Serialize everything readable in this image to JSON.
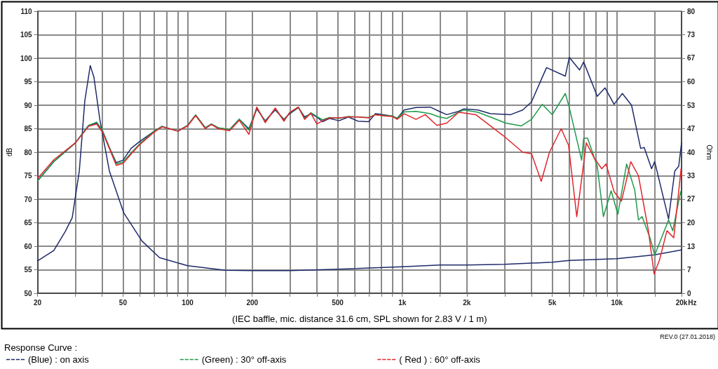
{
  "chart_data": {
    "type": "line",
    "xlabel": "(IEC baffle, mic. distance 31.6 cm, SPL shown for 2.83 V / 1 m)",
    "ylabel": "dB",
    "y2label": "Ohm",
    "legend_title": "Response Curve :",
    "annotations": [
      "REV.0 (27.01.2018)",
      "Hz"
    ],
    "log": "x",
    "grid": true,
    "legend": "bottom left",
    "marker": "none",
    "line_style": "solid",
    "xlim": [
      20,
      20000
    ],
    "ylim": [
      50,
      110
    ],
    "y2lim": [
      0,
      80
    ],
    "xticks": [
      20,
      {
        "value": 30,
        "label": null
      },
      {
        "value": 40,
        "label": null
      },
      50,
      {
        "value": 60,
        "label": null
      },
      {
        "value": 70,
        "label": null
      },
      {
        "value": 80,
        "label": null
      },
      {
        "value": 90,
        "label": null
      },
      100,
      {
        "value": 150,
        "label": null
      },
      200,
      {
        "value": 300,
        "label": null
      },
      {
        "value": 400,
        "label": null
      },
      500,
      {
        "value": 600,
        "label": null
      },
      {
        "value": 700,
        "label": null
      },
      {
        "value": 800,
        "label": null
      },
      {
        "value": 900,
        "label": null
      },
      {
        "value": 1000,
        "label": "1k"
      },
      {
        "value": 1500,
        "label": null
      },
      {
        "value": 2000,
        "label": "2k"
      },
      {
        "value": 3000,
        "label": null
      },
      {
        "value": 4000,
        "label": null
      },
      {
        "value": 5000,
        "label": "5k"
      },
      {
        "value": 6000,
        "label": null
      },
      {
        "value": 7000,
        "label": null
      },
      {
        "value": 8000,
        "label": null
      },
      {
        "value": 9000,
        "label": null
      },
      {
        "value": 10000,
        "label": "10k"
      },
      {
        "value": 15000,
        "label": null
      },
      {
        "value": 20000,
        "label": "20k"
      }
    ],
    "yticks": [
      50,
      55,
      60,
      65,
      70,
      75,
      80,
      85,
      90,
      95,
      100,
      105,
      110
    ],
    "y2ticks": [
      0,
      {
        "value": 6.667,
        "label": "7"
      },
      {
        "value": 13.333,
        "label": "13"
      },
      20,
      {
        "value": 26.667,
        "label": "27"
      },
      {
        "value": 33.333,
        "label": "33"
      },
      40,
      {
        "value": 46.667,
        "label": "47"
      },
      {
        "value": 53.333,
        "label": "53"
      },
      60,
      {
        "value": 66.667,
        "label": "67"
      },
      {
        "value": 73.333,
        "label": "73"
      },
      80
    ],
    "series": [
      {
        "name": "(Blue) : on axis",
        "color": "#1f2a6b",
        "x": [
          20,
          23.8,
          30,
          34.6,
          37.7,
          40.1,
          43.2,
          46.5,
          50,
          54.5,
          59.8,
          70,
          76,
          90,
          100,
          109,
          121,
          129,
          139,
          157,
          174,
          193,
          210,
          230,
          256,
          281,
          299,
          328,
          351,
          375,
          400,
          425,
          458,
          507,
          561,
          622,
          697,
          750,
          836,
          900,
          946,
          1021,
          1159,
          1350,
          1488,
          1611,
          1831,
          1929,
          2250,
          2570,
          3200,
          3640,
          4000,
          4700,
          5750,
          6000,
          6700,
          7000,
          8100,
          8800,
          9700,
          10600,
          11700,
          12900,
          13400,
          14500,
          15000,
          17400,
          18600,
          19400,
          20000
        ],
        "values": [
          73.9,
          78.0,
          82.0,
          85.7,
          86.2,
          84.5,
          81.0,
          77.8,
          78.3,
          80.8,
          82.3,
          84.5,
          85.5,
          84.5,
          85.7,
          87.9,
          85.2,
          86.0,
          85.2,
          84.8,
          87.0,
          85.0,
          89.2,
          86.7,
          89.0,
          87.0,
          88.2,
          89.5,
          87.5,
          88.2,
          87.5,
          86.5,
          87.2,
          86.7,
          87.5,
          86.6,
          86.5,
          88.2,
          87.9,
          87.7,
          87.2,
          89.0,
          89.5,
          89.6,
          88.7,
          88.0,
          88.7,
          89.2,
          89.0,
          88.2,
          88.0,
          89.0,
          90.7,
          98.0,
          96.2,
          100.2,
          97.5,
          99.2,
          91.9,
          93.7,
          90.2,
          92.5,
          90.0,
          80.8,
          81.0,
          76.5,
          78.0,
          65.8,
          76.0,
          77.0,
          82.0
        ]
      },
      {
        "name": "(Green) : 30° off-axis",
        "color": "#1e9a4a",
        "x": [
          20,
          23.8,
          30,
          34.6,
          37.7,
          40.1,
          43.2,
          46.5,
          50,
          54.5,
          59.8,
          70,
          76,
          90,
          100,
          109,
          121,
          129,
          139,
          157,
          174,
          193,
          210,
          230,
          256,
          281,
          299,
          328,
          351,
          375,
          400,
          425,
          458,
          507,
          561,
          622,
          697,
          750,
          836,
          900,
          946,
          1021,
          1159,
          1350,
          1488,
          1611,
          1831,
          1929,
          2250,
          2570,
          3040,
          3590,
          4000,
          4490,
          5000,
          5750,
          6000,
          6850,
          7000,
          7300,
          8100,
          8650,
          9400,
          10100,
          11100,
          12100,
          12600,
          13100,
          14300,
          15000,
          17400,
          18200,
          19800,
          20000
        ],
        "values": [
          73.9,
          78.0,
          82.0,
          85.7,
          86.4,
          84.7,
          81.0,
          77.5,
          77.9,
          79.8,
          81.8,
          84.5,
          85.5,
          84.5,
          85.7,
          87.9,
          85.2,
          86.0,
          85.2,
          84.8,
          87.0,
          84.7,
          89.5,
          86.5,
          89.3,
          86.8,
          88.4,
          89.6,
          87.2,
          88.4,
          87.6,
          86.9,
          87.4,
          87.2,
          87.6,
          87.5,
          87.4,
          88.0,
          87.8,
          87.7,
          87.2,
          88.6,
          88.7,
          88.2,
          87.5,
          87.2,
          88.5,
          89.0,
          88.5,
          87.5,
          86.2,
          85.6,
          87.0,
          90.2,
          88.0,
          92.5,
          89.5,
          78.3,
          83.0,
          83.0,
          77.0,
          66.3,
          71.8,
          66.8,
          77.5,
          72.0,
          65.6,
          66.3,
          61.6,
          58.1,
          65.6,
          63.3,
          71.6,
          70.6
        ]
      },
      {
        "name": "( Red ) : 60° off-axis",
        "color": "#e0262b",
        "x": [
          20,
          23.8,
          30,
          34.6,
          37.7,
          40.1,
          43.2,
          46.5,
          50,
          54.5,
          59.8,
          70,
          76,
          90,
          100,
          109,
          121,
          129,
          139,
          157,
          174,
          193,
          210,
          230,
          256,
          281,
          299,
          328,
          351,
          375,
          400,
          425,
          458,
          507,
          561,
          622,
          697,
          750,
          836,
          900,
          946,
          1021,
          1159,
          1280,
          1450,
          1611,
          1831,
          2200,
          2960,
          3640,
          4000,
          4440,
          4850,
          5500,
          5950,
          6500,
          7200,
          7900,
          8500,
          8900,
          9700,
          10500,
          11600,
          12600,
          14000,
          14900,
          15800,
          17100,
          18400,
          19900,
          20000
        ],
        "values": [
          74.4,
          78.4,
          82.0,
          85.5,
          86.0,
          84.3,
          80.8,
          77.2,
          77.6,
          79.6,
          81.6,
          84.3,
          85.4,
          84.5,
          85.6,
          87.8,
          85.0,
          85.9,
          85.0,
          84.6,
          86.8,
          83.8,
          89.6,
          86.3,
          89.4,
          86.6,
          88.5,
          89.6,
          87.0,
          88.3,
          86.0,
          86.7,
          87.3,
          87.3,
          87.5,
          87.5,
          87.3,
          88.0,
          87.7,
          87.6,
          87.0,
          88.2,
          87.0,
          88.0,
          85.7,
          86.2,
          88.5,
          88.0,
          83.5,
          80.0,
          79.7,
          73.8,
          80.0,
          85.0,
          81.5,
          66.3,
          82.0,
          78.5,
          76.5,
          77.5,
          71.6,
          69.6,
          78.0,
          75.0,
          63.5,
          54.1,
          57.1,
          63.3,
          61.8,
          76.5,
          75.0
        ]
      },
      {
        "color": "#1f2a6b",
        "axis": "y2",
        "x": [
          20,
          23.8,
          26.9,
          29,
          31.3,
          33.2,
          35.2,
          36.6,
          39,
          43.2,
          50.4,
          61.3,
          74,
          100,
          150,
          200,
          300,
          500,
          1000,
          1500,
          2000,
          3000,
          5000,
          6000,
          10000,
          15000,
          20000
        ],
        "values": [
          9.2,
          12.1,
          17.5,
          21.4,
          34.7,
          54.6,
          64.6,
          61.3,
          49.3,
          34.7,
          22.8,
          14.8,
          10.1,
          7.8,
          6.5,
          6.4,
          6.4,
          6.8,
          7.5,
          8.0,
          8.0,
          8.2,
          8.8,
          9.3,
          9.8,
          10.9,
          12.3
        ]
      }
    ]
  }
}
